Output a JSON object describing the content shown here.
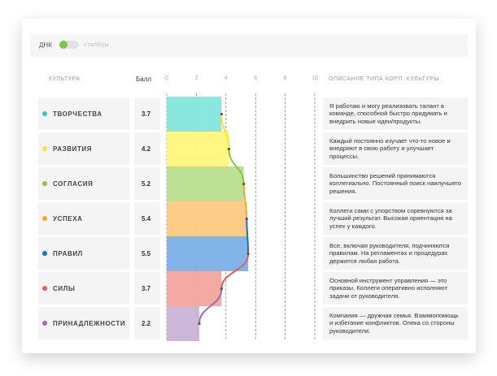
{
  "toggle": {
    "left": "ДНК",
    "right": "столбцы"
  },
  "headers": {
    "culture": "КУЛЬТУРА",
    "score": "Балл",
    "description": "ОПИСАНИЕ ТИПА КОРП. КУЛЬТУРЫ"
  },
  "chart_data": {
    "type": "bar",
    "categories": [
      "ТВОРЧЕСТВА",
      "РАЗВИТИЯ",
      "СОГЛАСИЯ",
      "УСПЕХА",
      "ПРАВИЛ",
      "СИЛЫ",
      "ПРИНАДЛЕЖНОСТИ"
    ],
    "values": [
      3.7,
      4.2,
      5.2,
      5.4,
      5.5,
      3.7,
      2.2
    ],
    "colors": [
      "#84e6de",
      "#fff77a",
      "#b8df8e",
      "#fdca82",
      "#7cb0e8",
      "#f3a59d",
      "#c9b3d7"
    ],
    "dot_colors": [
      "#37c6c8",
      "#ffe52a",
      "#8cc63f",
      "#f5a623",
      "#1b6fc3",
      "#e35d50",
      "#9c6cb1"
    ],
    "descriptions": [
      "Я работаю и могу реализовать талант в команде, способной быстро придумать и внедрить новые идеи/продукты.",
      "Каждый постоянно изучает что-то новое и внедряют в свою работу и улучшает процессы.",
      "Большинство решений принимаются коллегиально. Постоянный поиск наилучшего решения.",
      "Коллеги сами с упорством соревнуются за лучший результат. Высокая ориентация на успех у каждого.",
      "Все, включая руководителя, подчиняются правилам. На регламентах и процедурах держится любая работа.",
      "Основной инструмент управления — это приказы. Коллеги оперативно исполняют задачи от руководителя.",
      "Компания — дружная семья. Взаимопомощь и избегание конфликтов. Опека со стороны руководителя."
    ],
    "xlim": [
      0,
      10
    ],
    "xticks": [
      0,
      2,
      4,
      6,
      8,
      10
    ]
  }
}
